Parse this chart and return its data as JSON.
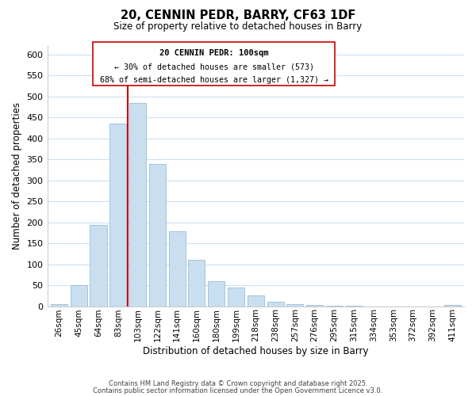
{
  "title": "20, CENNIN PEDR, BARRY, CF63 1DF",
  "subtitle": "Size of property relative to detached houses in Barry",
  "xlabel": "Distribution of detached houses by size in Barry",
  "ylabel": "Number of detached properties",
  "bar_labels": [
    "26sqm",
    "45sqm",
    "64sqm",
    "83sqm",
    "103sqm",
    "122sqm",
    "141sqm",
    "160sqm",
    "180sqm",
    "199sqm",
    "218sqm",
    "238sqm",
    "257sqm",
    "276sqm",
    "295sqm",
    "315sqm",
    "334sqm",
    "353sqm",
    "372sqm",
    "392sqm",
    "411sqm"
  ],
  "bar_values": [
    5,
    50,
    193,
    435,
    485,
    340,
    178,
    110,
    60,
    44,
    25,
    10,
    5,
    2,
    1,
    1,
    0,
    0,
    0,
    0,
    3
  ],
  "bar_color": "#c9dff0",
  "bar_edge_color": "#a0c4e0",
  "vline_color": "#cc0000",
  "ylim": [
    0,
    620
  ],
  "yticks": [
    0,
    50,
    100,
    150,
    200,
    250,
    300,
    350,
    400,
    450,
    500,
    550,
    600
  ],
  "annotation_title": "20 CENNIN PEDR: 100sqm",
  "annotation_line1": "← 30% of detached houses are smaller (573)",
  "annotation_line2": "68% of semi-detached houses are larger (1,327) →",
  "footer_line1": "Contains HM Land Registry data © Crown copyright and database right 2025.",
  "footer_line2": "Contains public sector information licensed under the Open Government Licence v3.0.",
  "background_color": "#ffffff",
  "grid_color": "#d0dff0"
}
